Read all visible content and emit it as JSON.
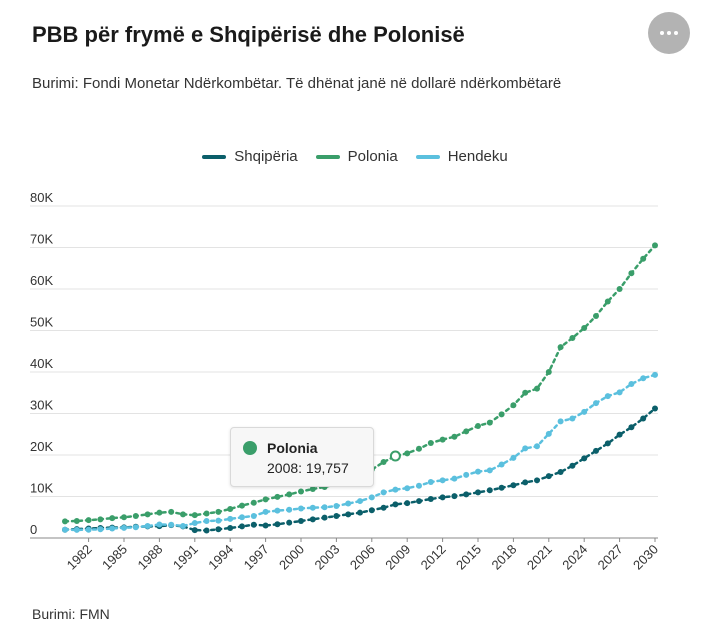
{
  "title": "PBB për frymë e Shqipërisë dhe Polonisë",
  "subtitle": "Burimi: Fondi Monetar Ndërkombëtar. Të dhënat janë në dollarë ndërkombëtarë",
  "source": "Burimi: FMN",
  "menu_icon": "more-horizontal-icon",
  "tooltip": {
    "series": "Polonia",
    "text": "2008: 19,757",
    "color": "#3a9e6a"
  },
  "chart_data": {
    "type": "line",
    "title": "PBB për frymë e Shqipërisë dhe Polonisë",
    "xlabel": "",
    "ylabel": "",
    "x": [
      1980,
      1981,
      1982,
      1983,
      1984,
      1985,
      1986,
      1987,
      1988,
      1989,
      1990,
      1991,
      1992,
      1993,
      1994,
      1995,
      1996,
      1997,
      1998,
      1999,
      2000,
      2001,
      2002,
      2003,
      2004,
      2005,
      2006,
      2007,
      2008,
      2009,
      2010,
      2011,
      2012,
      2013,
      2014,
      2015,
      2016,
      2017,
      2018,
      2019,
      2020,
      2021,
      2022,
      2023,
      2024,
      2025,
      2026,
      2027,
      2028,
      2029,
      2030
    ],
    "xticks": [
      "1982",
      "1985",
      "1988",
      "1991",
      "1994",
      "1997",
      "2000",
      "2003",
      "2006",
      "2009",
      "2012",
      "2015",
      "2018",
      "2021",
      "2024",
      "2027",
      "2030"
    ],
    "yticks": [
      0,
      10000,
      20000,
      30000,
      40000,
      50000,
      60000,
      70000,
      80000
    ],
    "ytick_labels": [
      "0",
      "10K",
      "20K",
      "30K",
      "40K",
      "50K",
      "60K",
      "70K",
      "80K"
    ],
    "ylim": [
      0,
      80000
    ],
    "grid": true,
    "legend": "top-center",
    "series": [
      {
        "name": "Shqipëria",
        "color": "#0b5f6a",
        "values": [
          2000,
          2150,
          2300,
          2400,
          2500,
          2550,
          2700,
          2800,
          2850,
          3100,
          2800,
          1900,
          1800,
          2100,
          2400,
          2800,
          3200,
          3000,
          3300,
          3700,
          4100,
          4500,
          4900,
          5300,
          5700,
          6100,
          6700,
          7300,
          8100,
          8400,
          8900,
          9400,
          9800,
          10100,
          10500,
          11000,
          11500,
          12100,
          12700,
          13400,
          13900,
          14900,
          15900,
          17400,
          19200,
          21000,
          22800,
          24900,
          26700,
          28800,
          31200
        ]
      },
      {
        "name": "Polonia",
        "color": "#3a9e6a",
        "values": [
          4000,
          4100,
          4300,
          4500,
          4800,
          5000,
          5300,
          5700,
          6100,
          6300,
          5700,
          5500,
          5900,
          6300,
          7000,
          7800,
          8500,
          9300,
          9900,
          10500,
          11200,
          11800,
          12300,
          13000,
          14000,
          15000,
          16500,
          18300,
          19757,
          20400,
          21500,
          22900,
          23700,
          24400,
          25700,
          27000,
          27800,
          29800,
          32000,
          35000,
          36000,
          40000,
          46000,
          48200,
          50600,
          53500,
          57000,
          60000,
          63800,
          67300,
          70500
        ]
      },
      {
        "name": "Hendeku",
        "color": "#5bc0de",
        "values": [
          2000,
          1950,
          2000,
          2100,
          2300,
          2450,
          2600,
          2900,
          3250,
          3200,
          2900,
          3600,
          4100,
          4200,
          4600,
          5000,
          5300,
          6300,
          6600,
          6800,
          7100,
          7300,
          7400,
          7700,
          8300,
          8900,
          9800,
          11000,
          11657,
          12000,
          12600,
          13500,
          13900,
          14300,
          15200,
          16000,
          16300,
          17700,
          19300,
          21600,
          22100,
          25100,
          28100,
          28800,
          30400,
          32500,
          34200,
          35100,
          37100,
          38500,
          39300
        ]
      }
    ]
  }
}
